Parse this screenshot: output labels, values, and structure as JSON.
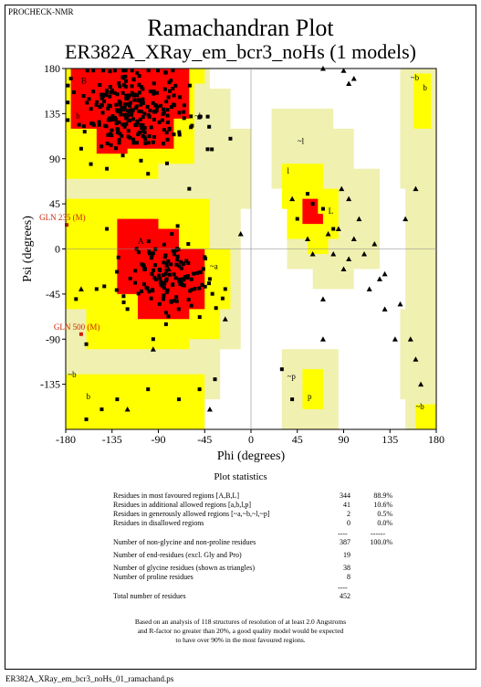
{
  "program_tag": "PROCHECK-NMR",
  "footer_filename": "ER382A_XRay_em_bcr3_noHs_01_ramachand.ps",
  "chart_data": {
    "type": "scatter",
    "title": "Ramachandran Plot",
    "subtitle": "ER382A_XRay_em_bcr3_noHs (1 models)",
    "xlabel": "Phi (degrees)",
    "ylabel": "Psi (degrees)",
    "xlim": [
      -180,
      180
    ],
    "ylim": [
      -180,
      180
    ],
    "x_ticks": [
      "-180",
      "-135",
      "-90",
      "-45",
      "0",
      "45",
      "90",
      "135",
      "180"
    ],
    "y_ticks": [
      "180",
      "135",
      "90",
      "45",
      "0",
      "-45",
      "-90",
      "-135"
    ],
    "colors": {
      "most_favoured": "#ff0000",
      "additional_allowed": "#ffff00",
      "generously_allowed": "#f0f0b0",
      "disallowed": "#ffffff",
      "labelled_residue": "#cc2200"
    },
    "region_labels": [
      {
        "text": "A",
        "phi": -110,
        "psi": 5
      },
      {
        "text": "B",
        "phi": -165,
        "psi": 165
      },
      {
        "text": "b",
        "phi": -170,
        "psi": 130
      },
      {
        "text": "~b",
        "phi": -55,
        "psi": 130
      },
      {
        "text": "~l",
        "phi": 45,
        "psi": 105
      },
      {
        "text": "l",
        "phi": 35,
        "psi": 75
      },
      {
        "text": "L",
        "phi": 75,
        "psi": 35
      },
      {
        "text": "~a",
        "phi": -40,
        "psi": -20
      },
      {
        "text": "a",
        "phi": -50,
        "psi": -25
      },
      {
        "text": "b",
        "phi": -160,
        "psi": -150
      },
      {
        "text": "~b",
        "phi": -178,
        "psi": -128
      },
      {
        "text": "~p",
        "phi": 35,
        "psi": -130
      },
      {
        "text": "p",
        "phi": 55,
        "psi": -150
      },
      {
        "text": "~b",
        "phi": 155,
        "psi": 168
      },
      {
        "text": "b",
        "phi": 167,
        "psi": 158
      },
      {
        "text": "~b",
        "phi": 160,
        "psi": -160
      }
    ],
    "labelled_residues": [
      {
        "label": "GLN 235 (M)",
        "phi": -179,
        "psi": 24
      },
      {
        "label": "GLN 500 (M)",
        "phi": -165,
        "psi": -85
      }
    ]
  },
  "statistics": {
    "heading": "Plot statistics",
    "rows": [
      {
        "label": "Residues in most favoured regions  [A,B,L]",
        "count": "344",
        "percent": "88.9%"
      },
      {
        "label": "Residues in additional allowed regions  [a,b,l,p]",
        "count": "41",
        "percent": "10.6%"
      },
      {
        "label": "Residues in generously allowed regions  [~a,~b,~l,~p]",
        "count": "2",
        "percent": "0.5%"
      },
      {
        "label": "Residues in disallowed regions",
        "count": "0",
        "percent": "0.0%"
      },
      {
        "label": "Number of non-glycine and non-proline residues",
        "count": "387",
        "percent": "100.0%"
      },
      {
        "label": "Number of end-residues (excl. Gly and Pro)",
        "count": "19",
        "percent": ""
      },
      {
        "label": "Number of glycine residues (shown as triangles)",
        "count": "38",
        "percent": ""
      },
      {
        "label": "Number of proline residues",
        "count": "8",
        "percent": ""
      },
      {
        "label": "Total number of residues",
        "count": "452",
        "percent": ""
      }
    ],
    "separator": "----",
    "separator_long": "------",
    "note_lines": [
      "Based on an analysis of 118 structures of resolution of at least 2.0 Angstroms",
      "and R-factor no greater than 20%, a good quality model would be expected",
      "to have over 90% in the most favoured regions."
    ]
  }
}
